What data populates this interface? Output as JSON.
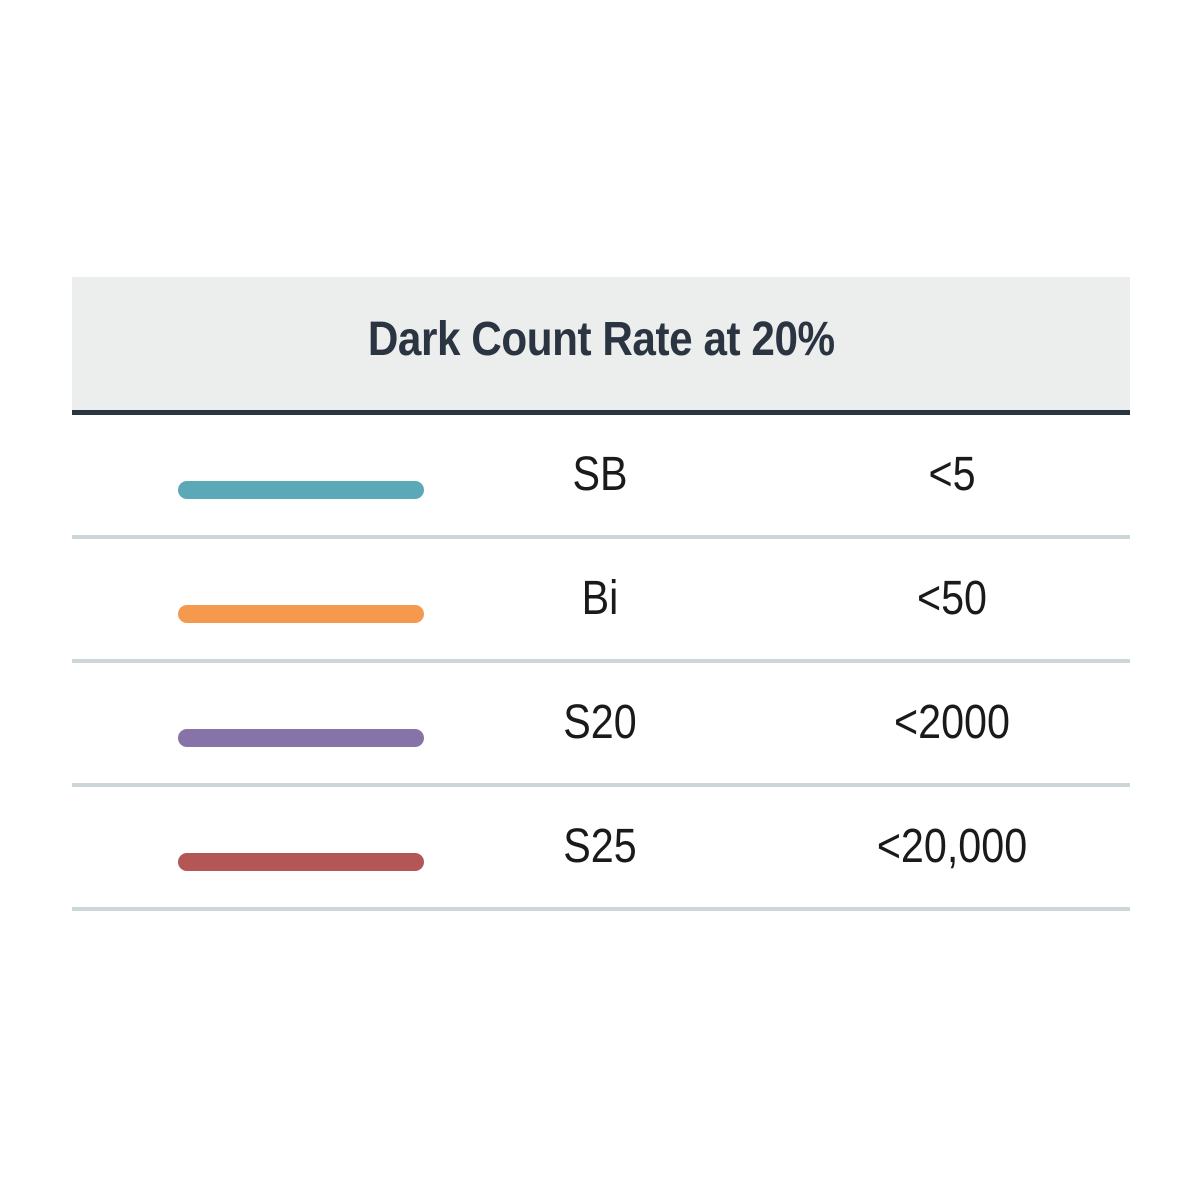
{
  "table": {
    "title": "Dark Count Rate at 20%",
    "rows": [
      {
        "swatch_color": "#5ba8b6",
        "name": "SB",
        "rate": "<5"
      },
      {
        "swatch_color": "#f5994f",
        "name": "Bi",
        "rate": "<50"
      },
      {
        "swatch_color": "#8674a8",
        "name": "S20",
        "rate": "<2000"
      },
      {
        "swatch_color": "#b45656",
        "name": "S25",
        "rate": "<20,000"
      }
    ]
  }
}
